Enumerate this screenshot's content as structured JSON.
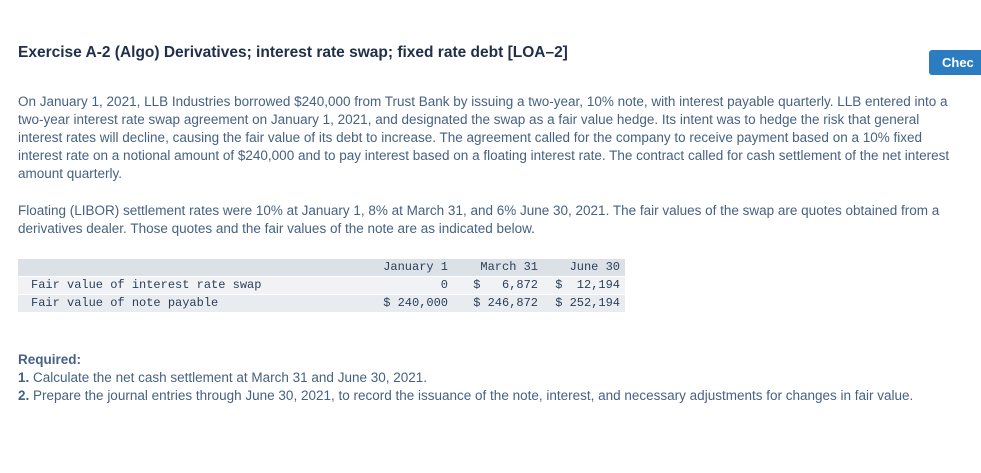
{
  "header_button": {
    "label": "Chec",
    "color": "#2b7cc0"
  },
  "title": "Exercise A-2 (Algo) Derivatives; interest rate swap; fixed rate debt [LOA–2]",
  "paragraphs": {
    "p1": "On January 1, 2021, LLB Industries borrowed $240,000 from Trust Bank by issuing a two-year, 10% note, with interest payable quarterly. LLB entered into a two-year interest rate swap agreement on January 1, 2021, and designated the swap as a fair value hedge. Its intent was to hedge the risk that general interest rates will decline, causing the fair value of its debt to increase. The agreement called for the company to receive payment based on a 10% fixed interest rate on a notional amount of $240,000 and to pay interest based on a floating interest rate. The contract called for cash settlement of the net interest amount quarterly.",
    "p2": "Floating (LIBOR) settlement rates were 10% at January 1, 8% at March 31, and 6% June 30, 2021. The fair values of the swap are quotes obtained from a derivatives dealer. Those quotes and the fair values of the note are as indicated below."
  },
  "table": {
    "columns": [
      "",
      "January 1",
      "March 31",
      "June 30"
    ],
    "rows": [
      {
        "label": "Fair value of interest rate swap",
        "values": [
          "0",
          "$   6,872",
          "$  12,194"
        ]
      },
      {
        "label": "Fair value of note payable",
        "values": [
          "$ 240,000",
          "$ 246,872",
          "$ 252,194"
        ]
      }
    ]
  },
  "required": {
    "heading": "Required:",
    "items": [
      {
        "num": "1.",
        "text": " Calculate the net cash settlement at March 31 and June 30, 2021."
      },
      {
        "num": "2.",
        "text": " Prepare the journal entries through June 30, 2021, to record the issuance of the note, interest, and necessary adjustments for changes in fair value."
      }
    ]
  }
}
